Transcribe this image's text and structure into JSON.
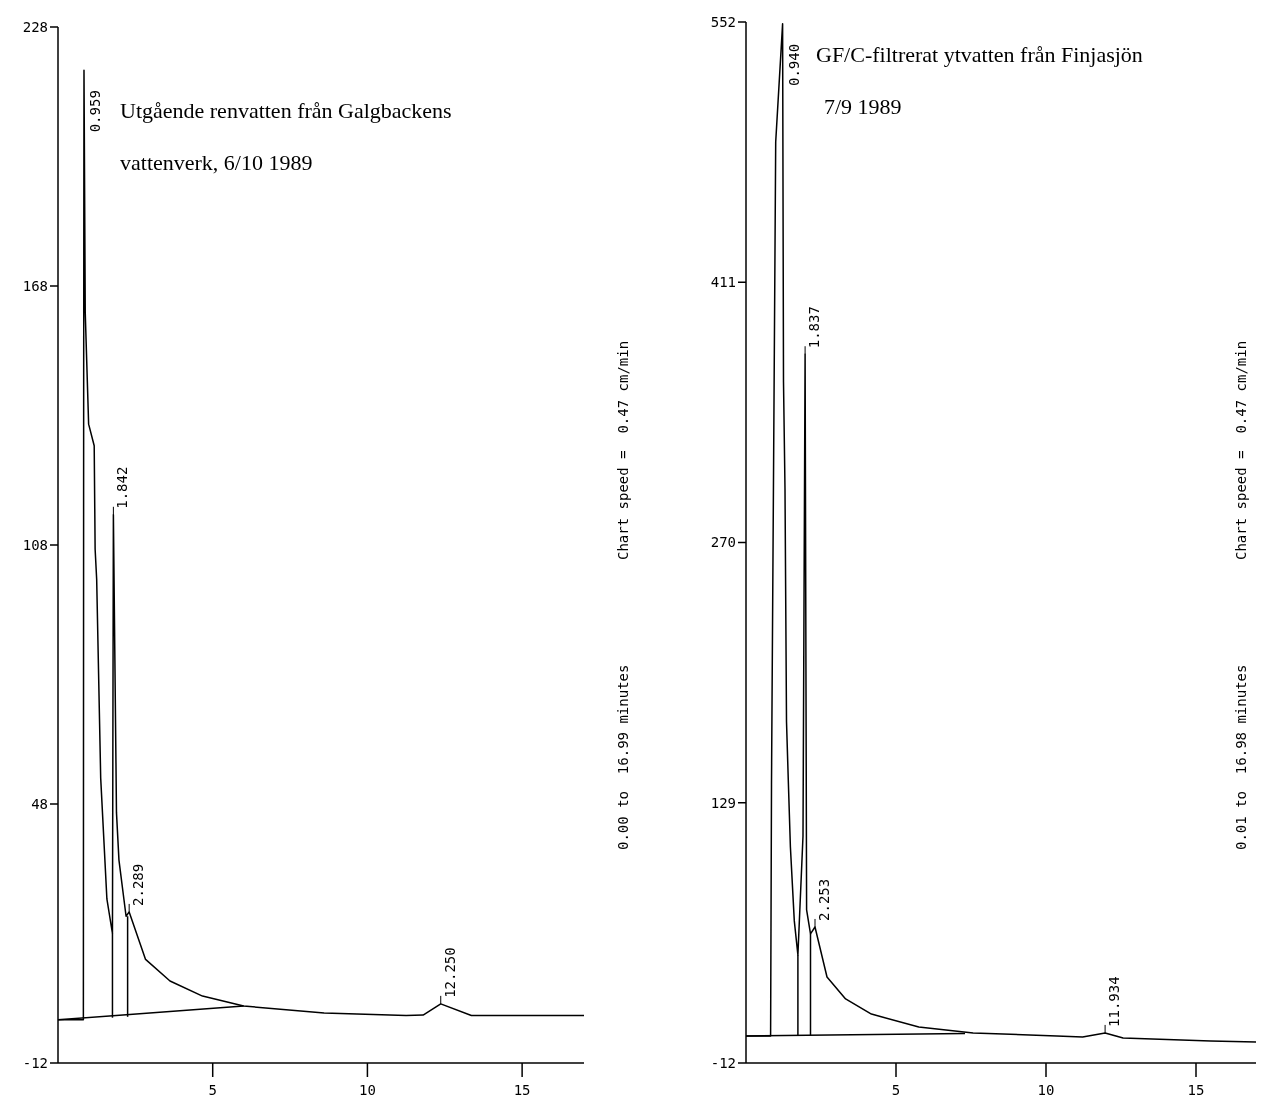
{
  "chart_data": [
    {
      "type": "line",
      "title": "Utgående renvatten från Galgbackens",
      "subtitle": "vattenverk, 6/10 1989",
      "xlim": [
        0,
        17
      ],
      "xticks": [
        5,
        10,
        15
      ],
      "ylim": [
        -12,
        228
      ],
      "yticks": [
        -12,
        48,
        108,
        168,
        228
      ],
      "grid": false,
      "series": [
        {
          "color": "#000000",
          "x": [
            0,
            0.82,
            0.83,
            0.84,
            0.88,
            0.99,
            1.17,
            1.2,
            1.25,
            1.38,
            1.58,
            1.76,
            1.79,
            1.89,
            1.97,
            2.2,
            2.3,
            2.83,
            3.62,
            4.67,
            6.0,
            8.6,
            11.25,
            11.8,
            12.37,
            13.36,
            17
          ],
          "values": [
            -2,
            -2,
            148,
            218,
            162,
            136,
            131,
            107,
            100,
            54,
            26,
            18,
            115,
            46,
            35,
            22,
            23,
            12,
            7,
            3.5,
            1.2,
            -0.4,
            -1,
            -0.9,
            1.7,
            -1,
            -1
          ]
        },
        {
          "color": "#000000",
          "x": [
            0,
            6.0
          ],
          "values": [
            -2,
            1.2
          ]
        },
        {
          "color": "#000000",
          "x": [
            1.76,
            1.76
          ],
          "values": [
            -1.5,
            18
          ]
        },
        {
          "color": "#000000",
          "x": [
            2.25,
            2.25
          ],
          "values": [
            -1.3,
            22
          ]
        }
      ],
      "annotations": [
        {
          "text": "0.959",
          "x": 0.84,
          "y": 218
        },
        {
          "text": "1.842",
          "x": 1.79,
          "y": 115
        },
        {
          "text": "2.289",
          "x": 2.3,
          "y": 23
        },
        {
          "text": "12.250",
          "x": 12.37,
          "y": 1.7
        },
        "0.00 to  16.99 minutes",
        "Chart speed =  0.47 cm/min"
      ]
    },
    {
      "type": "line",
      "title": "GF/C-filtrerat ytvatten från Finjasjön",
      "subtitle": "7/9 1989",
      "xlim": [
        0,
        17
      ],
      "xticks": [
        5,
        10,
        15
      ],
      "ylim": [
        -12,
        552
      ],
      "yticks": [
        -12,
        129,
        270,
        411,
        552
      ],
      "grid": false,
      "series": [
        {
          "color": "#000000",
          "x": [
            0,
            0.82,
            0.85,
            0.99,
            1.22,
            1.25,
            1.3,
            1.35,
            1.41,
            1.48,
            1.61,
            1.73,
            1.9,
            1.97,
            2.02,
            2.15,
            2.3,
            2.7,
            3.32,
            4.18,
            5.76,
            7.57,
            10.36,
            11.22,
            11.97,
            12.57,
            15.49,
            17
          ],
          "values": [
            2.6,
            2.6,
            139,
            487,
            551,
            357,
            299,
            173,
            141,
            105,
            65,
            46.5,
            111,
            372,
            71,
            58,
            61.7,
            34.6,
            22.7,
            14.5,
            7.5,
            4.3,
            2.6,
            2.1,
            4.3,
            1.5,
            -0.1,
            -0.6
          ]
        },
        {
          "color": "#000000",
          "x": [
            0,
            7.3
          ],
          "values": [
            2.6,
            4.0
          ]
        },
        {
          "color": "#000000",
          "x": [
            1.73,
            1.73
          ],
          "values": [
            3,
            46.5
          ]
        },
        {
          "color": "#000000",
          "x": [
            2.15,
            2.15
          ],
          "values": [
            3.1,
            58
          ]
        }
      ],
      "annotations": [
        {
          "text": "0.940",
          "x": 1.22,
          "y": 551
        },
        {
          "text": "1.837",
          "x": 1.97,
          "y": 372
        },
        {
          "text": "2.253",
          "x": 2.3,
          "y": 61.7
        },
        {
          "text": "11.934",
          "x": 11.97,
          "y": 4.3
        },
        "0.01 to  16.98 minutes",
        "Chart speed =  0.47 cm/min"
      ]
    }
  ]
}
